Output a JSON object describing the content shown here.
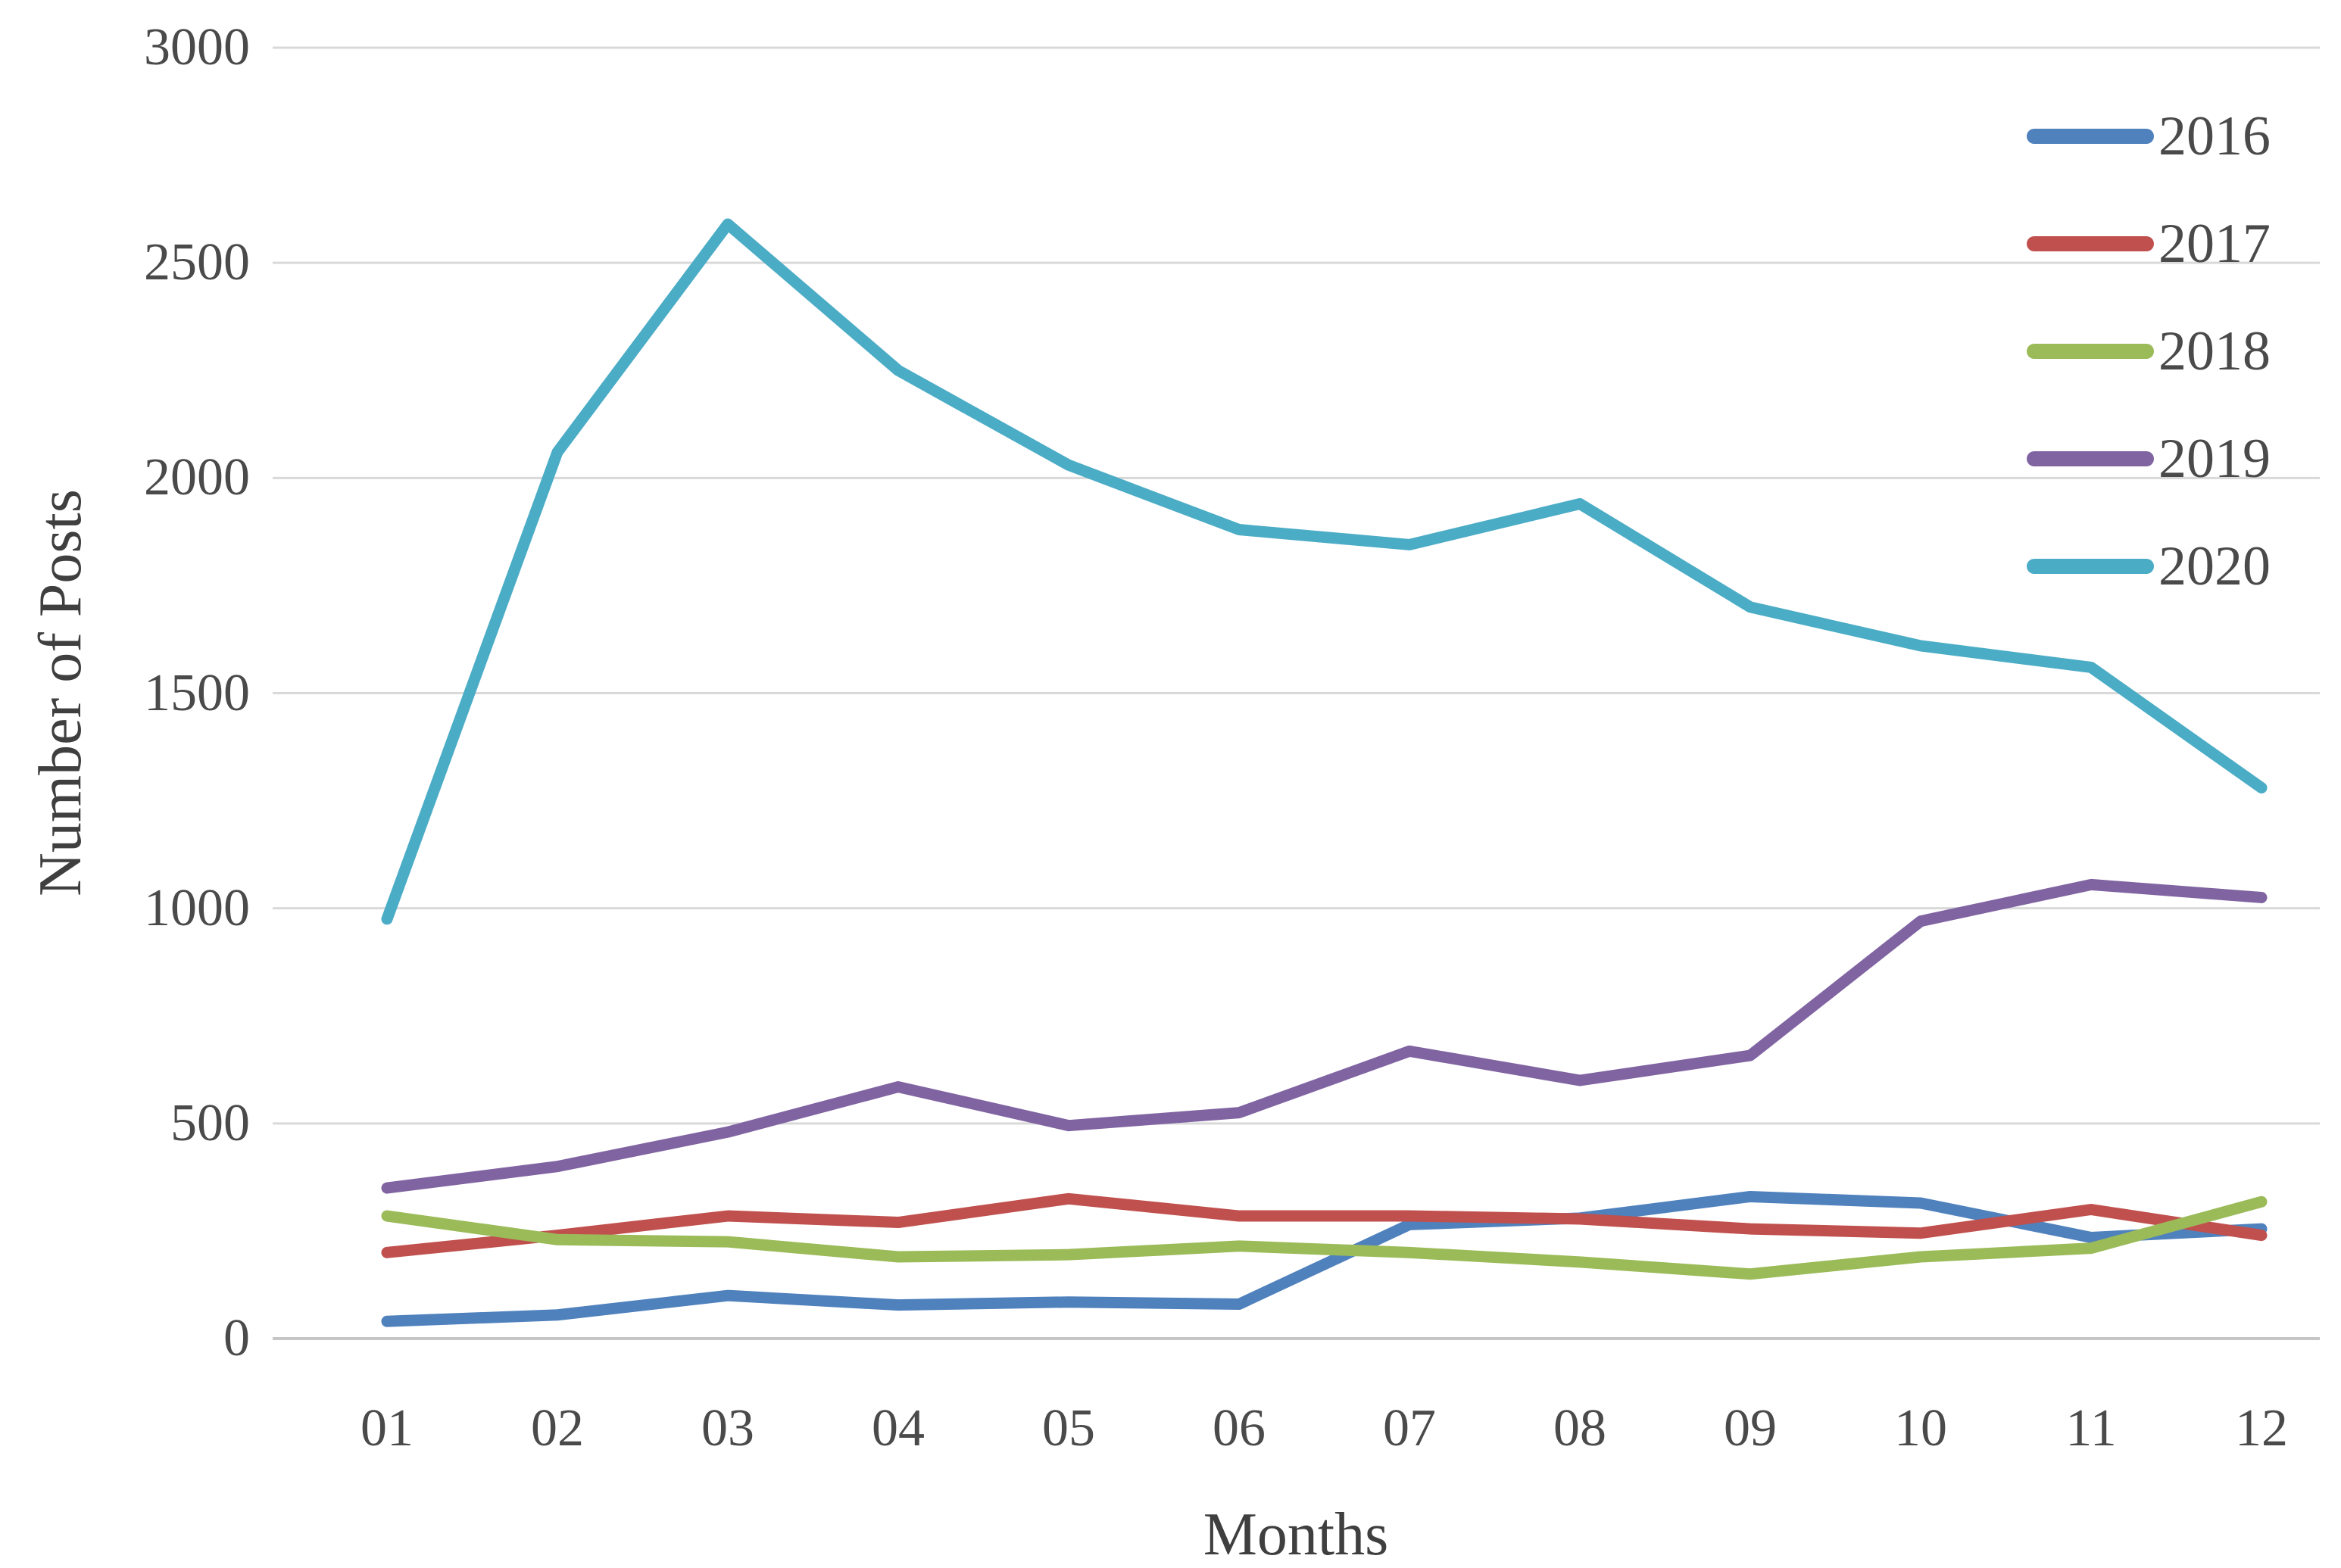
{
  "figure": {
    "background": "#ffffff",
    "text_color": "#4a4a4a",
    "gridline_color": "#d9d9d9",
    "baseline_color": "#c6c6c6"
  },
  "chart_data": {
    "type": "line",
    "title": "",
    "xlabel": "Months",
    "ylabel": "Number of Posts",
    "categories": [
      "01",
      "02",
      "03",
      "04",
      "05",
      "06",
      "07",
      "08",
      "09",
      "10",
      "11",
      "12"
    ],
    "ylim": [
      0,
      3000
    ],
    "ytick_step": 500,
    "ytick_labels": [
      "0",
      "500",
      "1000",
      "1500",
      "2000",
      "2500",
      "3000"
    ],
    "grid": "horizontal",
    "legend_position": "top-right-inside",
    "series": [
      {
        "name": "2016",
        "color": "#4F81BD",
        "values": [
          40,
          55,
          100,
          78,
          85,
          80,
          265,
          280,
          330,
          315,
          235,
          255
        ]
      },
      {
        "name": "2017",
        "color": "#C0504D",
        "values": [
          200,
          240,
          285,
          270,
          325,
          285,
          285,
          278,
          255,
          245,
          300,
          240
        ]
      },
      {
        "name": "2018",
        "color": "#9BBB59",
        "values": [
          285,
          230,
          225,
          190,
          195,
          215,
          200,
          178,
          150,
          190,
          210,
          318
        ]
      },
      {
        "name": "2019",
        "color": "#8064A2",
        "values": [
          350,
          400,
          480,
          585,
          495,
          525,
          668,
          600,
          658,
          970,
          1055,
          1025
        ]
      },
      {
        "name": "2020",
        "color": "#4BACC6",
        "values": [
          975,
          2060,
          2590,
          2250,
          2030,
          1880,
          1845,
          1940,
          1700,
          1610,
          1560,
          1280
        ]
      }
    ]
  }
}
